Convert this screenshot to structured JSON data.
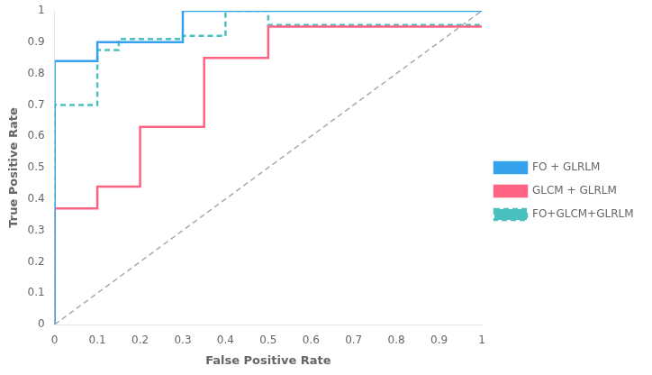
{
  "chart_data": {
    "type": "line",
    "xlabel": "False Positive Rate",
    "ylabel": "True Positive Rate",
    "xlim": [
      0,
      1
    ],
    "ylim": [
      0,
      1
    ],
    "xticks": [
      0,
      0.1,
      0.2,
      0.3,
      0.4,
      0.5,
      0.6,
      0.7,
      0.8,
      0.9,
      1
    ],
    "yticks": [
      0,
      0.1,
      0.2,
      0.3,
      0.4,
      0.5,
      0.6,
      0.7,
      0.8,
      0.9,
      1
    ],
    "grid": false,
    "legend": "right",
    "series": [
      {
        "color": "#aaaaaa",
        "line_style": "dashed",
        "x": [
          0,
          1
        ],
        "values": [
          0,
          1
        ]
      },
      {
        "name": "FO + GLRLM",
        "line_style": "solid",
        "x": [
          0,
          0,
          0.1,
          0.1,
          0.2,
          0.2,
          0.3,
          0.3,
          0.4,
          0.4,
          1.0
        ],
        "values": [
          0,
          0.84,
          0.84,
          0.9,
          0.9,
          0.9,
          0.9,
          1.0,
          1.0,
          1.0,
          1.0
        ]
      },
      {
        "name": "GLCM + GLRLM",
        "line_style": "solid",
        "x": [
          0,
          0,
          0.1,
          0.1,
          0.2,
          0.2,
          0.35,
          0.35,
          0.5,
          0.5,
          1.0
        ],
        "values": [
          0,
          0.37,
          0.37,
          0.44,
          0.44,
          0.63,
          0.63,
          0.85,
          0.85,
          0.95,
          0.95
        ]
      },
      {
        "name": "FO+GLCM+GLRLM",
        "line_style": "dashed",
        "x": [
          0,
          0,
          0.1,
          0.1,
          0.15,
          0.15,
          0.3,
          0.3,
          0.4,
          0.4,
          0.5,
          0.5,
          1.0
        ],
        "values": [
          0,
          0.7,
          0.7,
          0.875,
          0.875,
          0.91,
          0.91,
          0.92,
          0.92,
          1.0,
          1.0,
          0.955,
          0.955
        ]
      }
    ]
  }
}
